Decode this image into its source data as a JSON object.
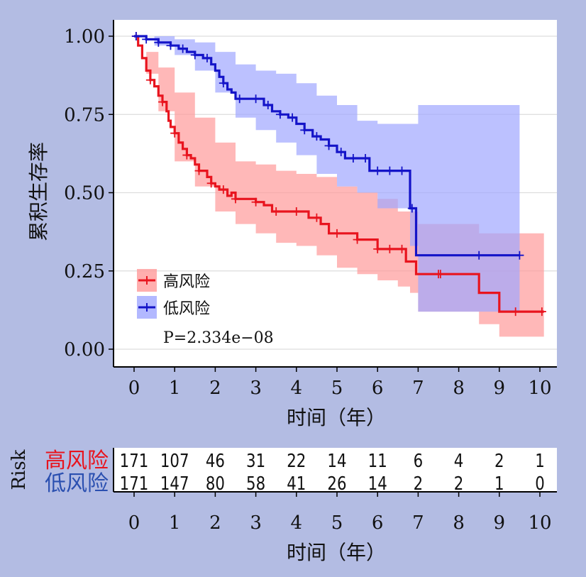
{
  "colors": {
    "background": "#b3bce3",
    "high_risk": "#e8141e",
    "low_risk": "#1414c8",
    "high_risk_band": "#ff9a9a",
    "low_risk_band": "#9fa6ff"
  },
  "chart_data": {
    "type": "line",
    "subtype": "kaplan-meier",
    "ylabel": "累积生存率",
    "xlabel": "时间（年）",
    "xlim": [
      -0.5,
      10.5
    ],
    "ylim": [
      -0.05,
      1.05
    ],
    "x_ticks": [
      "0",
      "1",
      "2",
      "3",
      "4",
      "5",
      "6",
      "7",
      "8",
      "9",
      "10"
    ],
    "y_ticks": [
      "0.00",
      "0.25",
      "0.50",
      "0.75",
      "1.00"
    ],
    "grid": true,
    "legend_position": "bottom-left",
    "pvalue_label": "P=2.334e−08",
    "series": [
      {
        "name": "高风险",
        "color": "#e8141e",
        "steps": [
          [
            0,
            1.0
          ],
          [
            0.1,
            0.97
          ],
          [
            0.2,
            0.93
          ],
          [
            0.3,
            0.89
          ],
          [
            0.4,
            0.86
          ],
          [
            0.5,
            0.84
          ],
          [
            0.6,
            0.81
          ],
          [
            0.7,
            0.79
          ],
          [
            0.8,
            0.76
          ],
          [
            0.85,
            0.73
          ],
          [
            0.9,
            0.71
          ],
          [
            1.0,
            0.69
          ],
          [
            1.1,
            0.66
          ],
          [
            1.2,
            0.64
          ],
          [
            1.3,
            0.62
          ],
          [
            1.4,
            0.61
          ],
          [
            1.5,
            0.59
          ],
          [
            1.6,
            0.57
          ],
          [
            1.8,
            0.55
          ],
          [
            1.9,
            0.53
          ],
          [
            2.0,
            0.52
          ],
          [
            2.1,
            0.51
          ],
          [
            2.3,
            0.49
          ],
          [
            2.4,
            0.5
          ],
          [
            2.5,
            0.48
          ],
          [
            3.0,
            0.47
          ],
          [
            3.2,
            0.46
          ],
          [
            3.4,
            0.44
          ],
          [
            4.3,
            0.42
          ],
          [
            4.6,
            0.4
          ],
          [
            4.8,
            0.37
          ],
          [
            5.5,
            0.35
          ],
          [
            6.0,
            0.32
          ],
          [
            6.7,
            0.28
          ],
          [
            6.95,
            0.24
          ],
          [
            7.7,
            0.24
          ],
          [
            8.5,
            0.18
          ],
          [
            9.0,
            0.12
          ],
          [
            10.1,
            0.12
          ]
        ],
        "band_upper": [
          [
            0,
            1.0
          ],
          [
            0.3,
            0.95
          ],
          [
            0.6,
            0.9
          ],
          [
            1.0,
            0.82
          ],
          [
            1.5,
            0.74
          ],
          [
            2.0,
            0.66
          ],
          [
            2.5,
            0.6
          ],
          [
            3.0,
            0.59
          ],
          [
            3.5,
            0.57
          ],
          [
            4.0,
            0.56
          ],
          [
            4.5,
            0.55
          ],
          [
            5.0,
            0.52
          ],
          [
            5.5,
            0.5
          ],
          [
            6.0,
            0.48
          ],
          [
            6.5,
            0.44
          ],
          [
            7.0,
            0.4
          ],
          [
            7.5,
            0.4
          ],
          [
            8.5,
            0.37
          ],
          [
            9.0,
            0.37
          ],
          [
            10.1,
            0.37
          ]
        ],
        "band_lower": [
          [
            0,
            1.0
          ],
          [
            0.3,
            0.88
          ],
          [
            0.6,
            0.76
          ],
          [
            1.0,
            0.6
          ],
          [
            1.5,
            0.52
          ],
          [
            2.0,
            0.44
          ],
          [
            2.5,
            0.4
          ],
          [
            3.0,
            0.37
          ],
          [
            3.5,
            0.34
          ],
          [
            4.0,
            0.33
          ],
          [
            4.5,
            0.3
          ],
          [
            5.0,
            0.26
          ],
          [
            5.5,
            0.24
          ],
          [
            6.0,
            0.22
          ],
          [
            6.5,
            0.2
          ],
          [
            6.8,
            0.18
          ],
          [
            7.0,
            0.12
          ],
          [
            7.7,
            0.12
          ],
          [
            8.0,
            0.12
          ],
          [
            8.5,
            0.08
          ],
          [
            9.0,
            0.04
          ],
          [
            10.1,
            0.04
          ]
        ],
        "censor_x": [
          0.05,
          0.4,
          0.7,
          1.0,
          1.3,
          1.6,
          1.9,
          2.2,
          2.5,
          3.0,
          3.5,
          4.0,
          4.5,
          5.0,
          5.5,
          6.0,
          6.3,
          6.6,
          7.5,
          7.55,
          9.4,
          10.05
        ]
      },
      {
        "name": "低风险",
        "color": "#1414c8",
        "steps": [
          [
            0,
            1.0
          ],
          [
            0.3,
            0.99
          ],
          [
            0.6,
            0.98
          ],
          [
            0.9,
            0.97
          ],
          [
            1.1,
            0.96
          ],
          [
            1.3,
            0.95
          ],
          [
            1.5,
            0.94
          ],
          [
            1.7,
            0.93
          ],
          [
            1.9,
            0.91
          ],
          [
            2.0,
            0.89
          ],
          [
            2.1,
            0.87
          ],
          [
            2.2,
            0.85
          ],
          [
            2.3,
            0.83
          ],
          [
            2.4,
            0.82
          ],
          [
            2.5,
            0.8
          ],
          [
            3.0,
            0.8
          ],
          [
            3.2,
            0.78
          ],
          [
            3.4,
            0.76
          ],
          [
            3.6,
            0.75
          ],
          [
            3.8,
            0.74
          ],
          [
            4.0,
            0.72
          ],
          [
            4.2,
            0.7
          ],
          [
            4.4,
            0.68
          ],
          [
            4.6,
            0.67
          ],
          [
            4.8,
            0.65
          ],
          [
            5.0,
            0.63
          ],
          [
            5.2,
            0.61
          ],
          [
            5.8,
            0.57
          ],
          [
            6.55,
            0.57
          ],
          [
            6.8,
            0.45
          ],
          [
            6.95,
            0.3
          ],
          [
            9.5,
            0.3
          ]
        ],
        "band_upper": [
          [
            0,
            1.0
          ],
          [
            0.5,
            1.0
          ],
          [
            1.0,
            0.99
          ],
          [
            1.5,
            0.98
          ],
          [
            2.0,
            0.95
          ],
          [
            2.5,
            0.91
          ],
          [
            3.0,
            0.89
          ],
          [
            3.5,
            0.88
          ],
          [
            4.0,
            0.85
          ],
          [
            4.5,
            0.81
          ],
          [
            5.0,
            0.78
          ],
          [
            5.5,
            0.73
          ],
          [
            6.0,
            0.72
          ],
          [
            6.5,
            0.72
          ],
          [
            6.95,
            0.72
          ],
          [
            7.0,
            0.78
          ],
          [
            9.5,
            0.78
          ]
        ],
        "band_lower": [
          [
            0,
            1.0
          ],
          [
            0.5,
            0.97
          ],
          [
            1.0,
            0.94
          ],
          [
            1.5,
            0.89
          ],
          [
            2.0,
            0.82
          ],
          [
            2.5,
            0.74
          ],
          [
            3.0,
            0.7
          ],
          [
            3.5,
            0.66
          ],
          [
            4.0,
            0.62
          ],
          [
            4.5,
            0.56
          ],
          [
            5.0,
            0.52
          ],
          [
            5.5,
            0.5
          ],
          [
            6.0,
            0.45
          ],
          [
            6.5,
            0.45
          ],
          [
            6.8,
            0.33
          ],
          [
            7.0,
            0.12
          ],
          [
            9.5,
            0.12
          ]
        ],
        "censor_x": [
          0.05,
          0.3,
          0.6,
          0.9,
          1.2,
          1.5,
          1.8,
          2.2,
          2.6,
          3.0,
          3.3,
          3.6,
          3.9,
          4.2,
          4.5,
          4.8,
          5.1,
          5.4,
          5.7,
          6.0,
          6.3,
          6.6,
          6.85,
          8.5,
          9.5
        ]
      }
    ]
  },
  "risk_table": {
    "side_label": "Risk",
    "xlabel": "时间（年）",
    "x_ticks": [
      "0",
      "1",
      "2",
      "3",
      "4",
      "5",
      "6",
      "7",
      "8",
      "9",
      "10"
    ],
    "rows": [
      {
        "label": "高风险",
        "color": "#e8141e",
        "counts": [
          "171",
          "107",
          "46",
          "31",
          "22",
          "14",
          "11",
          "6",
          "4",
          "2",
          "1"
        ]
      },
      {
        "label": "低风险",
        "color": "#2a4fb0",
        "counts": [
          "171",
          "147",
          "80",
          "58",
          "41",
          "26",
          "14",
          "2",
          "2",
          "1",
          "0"
        ]
      }
    ]
  }
}
